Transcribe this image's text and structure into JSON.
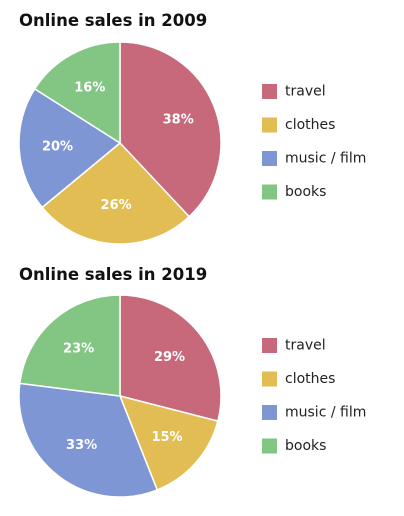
{
  "colors": {
    "travel": "#c8687b",
    "clothes": "#e2bd53",
    "music_film": "#7f96d4",
    "books": "#83c582",
    "slice_border": "#ffffff"
  },
  "chart_data": [
    {
      "type": "pie",
      "title": "Online sales in 2009",
      "labels": [
        "travel",
        "clothes",
        "music / film",
        "books"
      ],
      "values": [
        38,
        26,
        20,
        16
      ],
      "value_labels": [
        "38%",
        "26%",
        "20%",
        "16%"
      ],
      "legend_position": "right"
    },
    {
      "type": "pie",
      "title": "Online sales in 2019",
      "labels": [
        "travel",
        "clothes",
        "music / film",
        "books"
      ],
      "values": [
        29,
        15,
        33,
        23
      ],
      "value_labels": [
        "29%",
        "15%",
        "33%",
        "23%"
      ],
      "legend_position": "right"
    }
  ]
}
